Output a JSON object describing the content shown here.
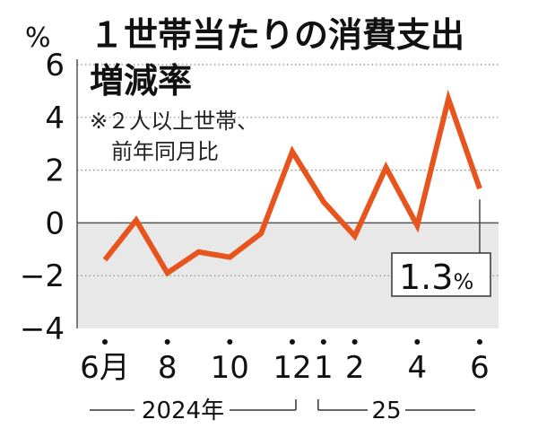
{
  "chart_data": {
    "type": "line",
    "title": "１世帯当たりの消費支出",
    "title_line2": "増減率",
    "note_line1": "※２人以上世帯、",
    "note_line2": "前年同月比",
    "y_unit": "%",
    "ylim": [
      -4,
      6
    ],
    "y_ticks": [
      "6",
      "4",
      "2",
      "0",
      "−2",
      "−4"
    ],
    "y_tick_values": [
      6,
      4,
      2,
      0,
      -2,
      -4
    ],
    "x_tick_labels": [
      "6月",
      "8",
      "10",
      "12",
      "1",
      "2",
      "4",
      "6"
    ],
    "x_tick_months": [
      0,
      2,
      4,
      6,
      7,
      8,
      10,
      12
    ],
    "year_labels": [
      "2024年",
      "25"
    ],
    "months": [
      "2024-06",
      "2024-07",
      "2024-08",
      "2024-09",
      "2024-10",
      "2024-11",
      "2024-12",
      "2025-01",
      "2025-02",
      "2025-03",
      "2025-04",
      "2025-05",
      "2025-06"
    ],
    "values": [
      -1.4,
      0.1,
      -1.9,
      -1.1,
      -1.3,
      -0.4,
      2.7,
      0.8,
      -0.5,
      2.1,
      -0.1,
      4.7,
      1.3
    ],
    "callout_label": "1.3",
    "callout_unit": "%",
    "colors": {
      "line": "#e8541e",
      "negative_band": "#e8e8e8",
      "grid": "#888888",
      "zero_line": "#555555"
    }
  }
}
